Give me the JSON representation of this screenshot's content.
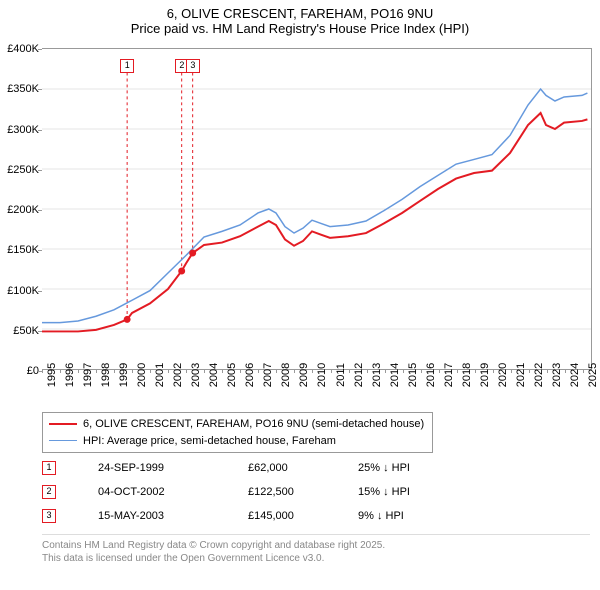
{
  "title": {
    "line1": "6, OLIVE CRESCENT, FAREHAM, PO16 9NU",
    "line2": "Price paid vs. HM Land Registry's House Price Index (HPI)"
  },
  "chart": {
    "type": "line",
    "background_color": "#ffffff",
    "grid_color": "#e5e5e5",
    "axis_color": "#999999",
    "label_fontsize": 11,
    "xlim": [
      1995,
      2025.5
    ],
    "ylim": [
      0,
      400000
    ],
    "y_ticks": [
      0,
      50000,
      100000,
      150000,
      200000,
      250000,
      300000,
      350000,
      400000
    ],
    "y_labels": [
      "£0",
      "£50K",
      "£100K",
      "£150K",
      "£200K",
      "£250K",
      "£300K",
      "£350K",
      "£400K"
    ],
    "x_ticks": [
      1995,
      1996,
      1997,
      1998,
      1999,
      2000,
      2001,
      2002,
      2003,
      2004,
      2005,
      2006,
      2007,
      2008,
      2009,
      2010,
      2011,
      2012,
      2013,
      2014,
      2015,
      2016,
      2017,
      2018,
      2019,
      2020,
      2021,
      2022,
      2023,
      2024,
      2025
    ],
    "series_red": {
      "name": "6, OLIVE CRESCENT, FAREHAM, PO16 9NU (semi-detached house)",
      "color": "#e31b23",
      "line_width": 2,
      "points": [
        [
          1995,
          47000
        ],
        [
          1996,
          47000
        ],
        [
          1997,
          47000
        ],
        [
          1998,
          49000
        ],
        [
          1999,
          55000
        ],
        [
          1999.73,
          62000
        ],
        [
          2000,
          70000
        ],
        [
          2001,
          82000
        ],
        [
          2002,
          100000
        ],
        [
          2002.76,
          122500
        ],
        [
          2003,
          132000
        ],
        [
          2003.37,
          145000
        ],
        [
          2004,
          155000
        ],
        [
          2005,
          158000
        ],
        [
          2006,
          166000
        ],
        [
          2007,
          178000
        ],
        [
          2007.6,
          185000
        ],
        [
          2008,
          180000
        ],
        [
          2008.5,
          162000
        ],
        [
          2009,
          154000
        ],
        [
          2009.5,
          160000
        ],
        [
          2010,
          172000
        ],
        [
          2010.5,
          168000
        ],
        [
          2011,
          164000
        ],
        [
          2012,
          166000
        ],
        [
          2013,
          170000
        ],
        [
          2014,
          182000
        ],
        [
          2015,
          195000
        ],
        [
          2016,
          210000
        ],
        [
          2017,
          225000
        ],
        [
          2018,
          238000
        ],
        [
          2019,
          245000
        ],
        [
          2020,
          248000
        ],
        [
          2021,
          270000
        ],
        [
          2022,
          305000
        ],
        [
          2022.7,
          320000
        ],
        [
          2023,
          305000
        ],
        [
          2023.5,
          300000
        ],
        [
          2024,
          308000
        ],
        [
          2025,
          310000
        ],
        [
          2025.3,
          312000
        ]
      ],
      "sale_markers": [
        {
          "x": 1999.73,
          "y": 62000
        },
        {
          "x": 2002.76,
          "y": 122500
        },
        {
          "x": 2003.37,
          "y": 145000
        }
      ]
    },
    "series_blue": {
      "name": "HPI: Average price, semi-detached house, Fareham",
      "color": "#6699dd",
      "line_width": 1.5,
      "points": [
        [
          1995,
          58000
        ],
        [
          1996,
          58000
        ],
        [
          1997,
          60000
        ],
        [
          1998,
          66000
        ],
        [
          1999,
          74000
        ],
        [
          2000,
          86000
        ],
        [
          2001,
          98000
        ],
        [
          2002,
          120000
        ],
        [
          2003,
          142000
        ],
        [
          2004,
          165000
        ],
        [
          2005,
          172000
        ],
        [
          2006,
          180000
        ],
        [
          2007,
          195000
        ],
        [
          2007.6,
          200000
        ],
        [
          2008,
          195000
        ],
        [
          2008.5,
          178000
        ],
        [
          2009,
          170000
        ],
        [
          2009.5,
          176000
        ],
        [
          2010,
          186000
        ],
        [
          2010.5,
          182000
        ],
        [
          2011,
          178000
        ],
        [
          2012,
          180000
        ],
        [
          2013,
          185000
        ],
        [
          2014,
          198000
        ],
        [
          2015,
          212000
        ],
        [
          2016,
          228000
        ],
        [
          2017,
          242000
        ],
        [
          2018,
          256000
        ],
        [
          2019,
          262000
        ],
        [
          2020,
          268000
        ],
        [
          2021,
          292000
        ],
        [
          2022,
          330000
        ],
        [
          2022.7,
          350000
        ],
        [
          2023,
          342000
        ],
        [
          2023.5,
          335000
        ],
        [
          2024,
          340000
        ],
        [
          2025,
          342000
        ],
        [
          2025.3,
          345000
        ]
      ]
    },
    "annotation_droplines": [
      {
        "label": "1",
        "x": 1999.73,
        "box_top_y": 388000
      },
      {
        "label": "2",
        "x": 2002.76,
        "box_top_y": 388000
      },
      {
        "label": "3",
        "x": 2003.37,
        "box_top_y": 388000
      }
    ]
  },
  "legend": {
    "items": [
      {
        "color": "#e31b23",
        "width": 2,
        "label": "6, OLIVE CRESCENT, FAREHAM, PO16 9NU (semi-detached house)"
      },
      {
        "color": "#6699dd",
        "width": 1.5,
        "label": "HPI: Average price, semi-detached house, Fareham"
      }
    ]
  },
  "annotations_table": {
    "rows": [
      {
        "num": "1",
        "date": "24-SEP-1999",
        "price": "£62,000",
        "diff": "25% ↓ HPI"
      },
      {
        "num": "2",
        "date": "04-OCT-2002",
        "price": "£122,500",
        "diff": "15% ↓ HPI"
      },
      {
        "num": "3",
        "date": "15-MAY-2003",
        "price": "£145,000",
        "diff": "9% ↓ HPI"
      }
    ]
  },
  "footer": {
    "line1": "Contains HM Land Registry data © Crown copyright and database right 2025.",
    "line2": "This data is licensed under the Open Government Licence v3.0."
  }
}
